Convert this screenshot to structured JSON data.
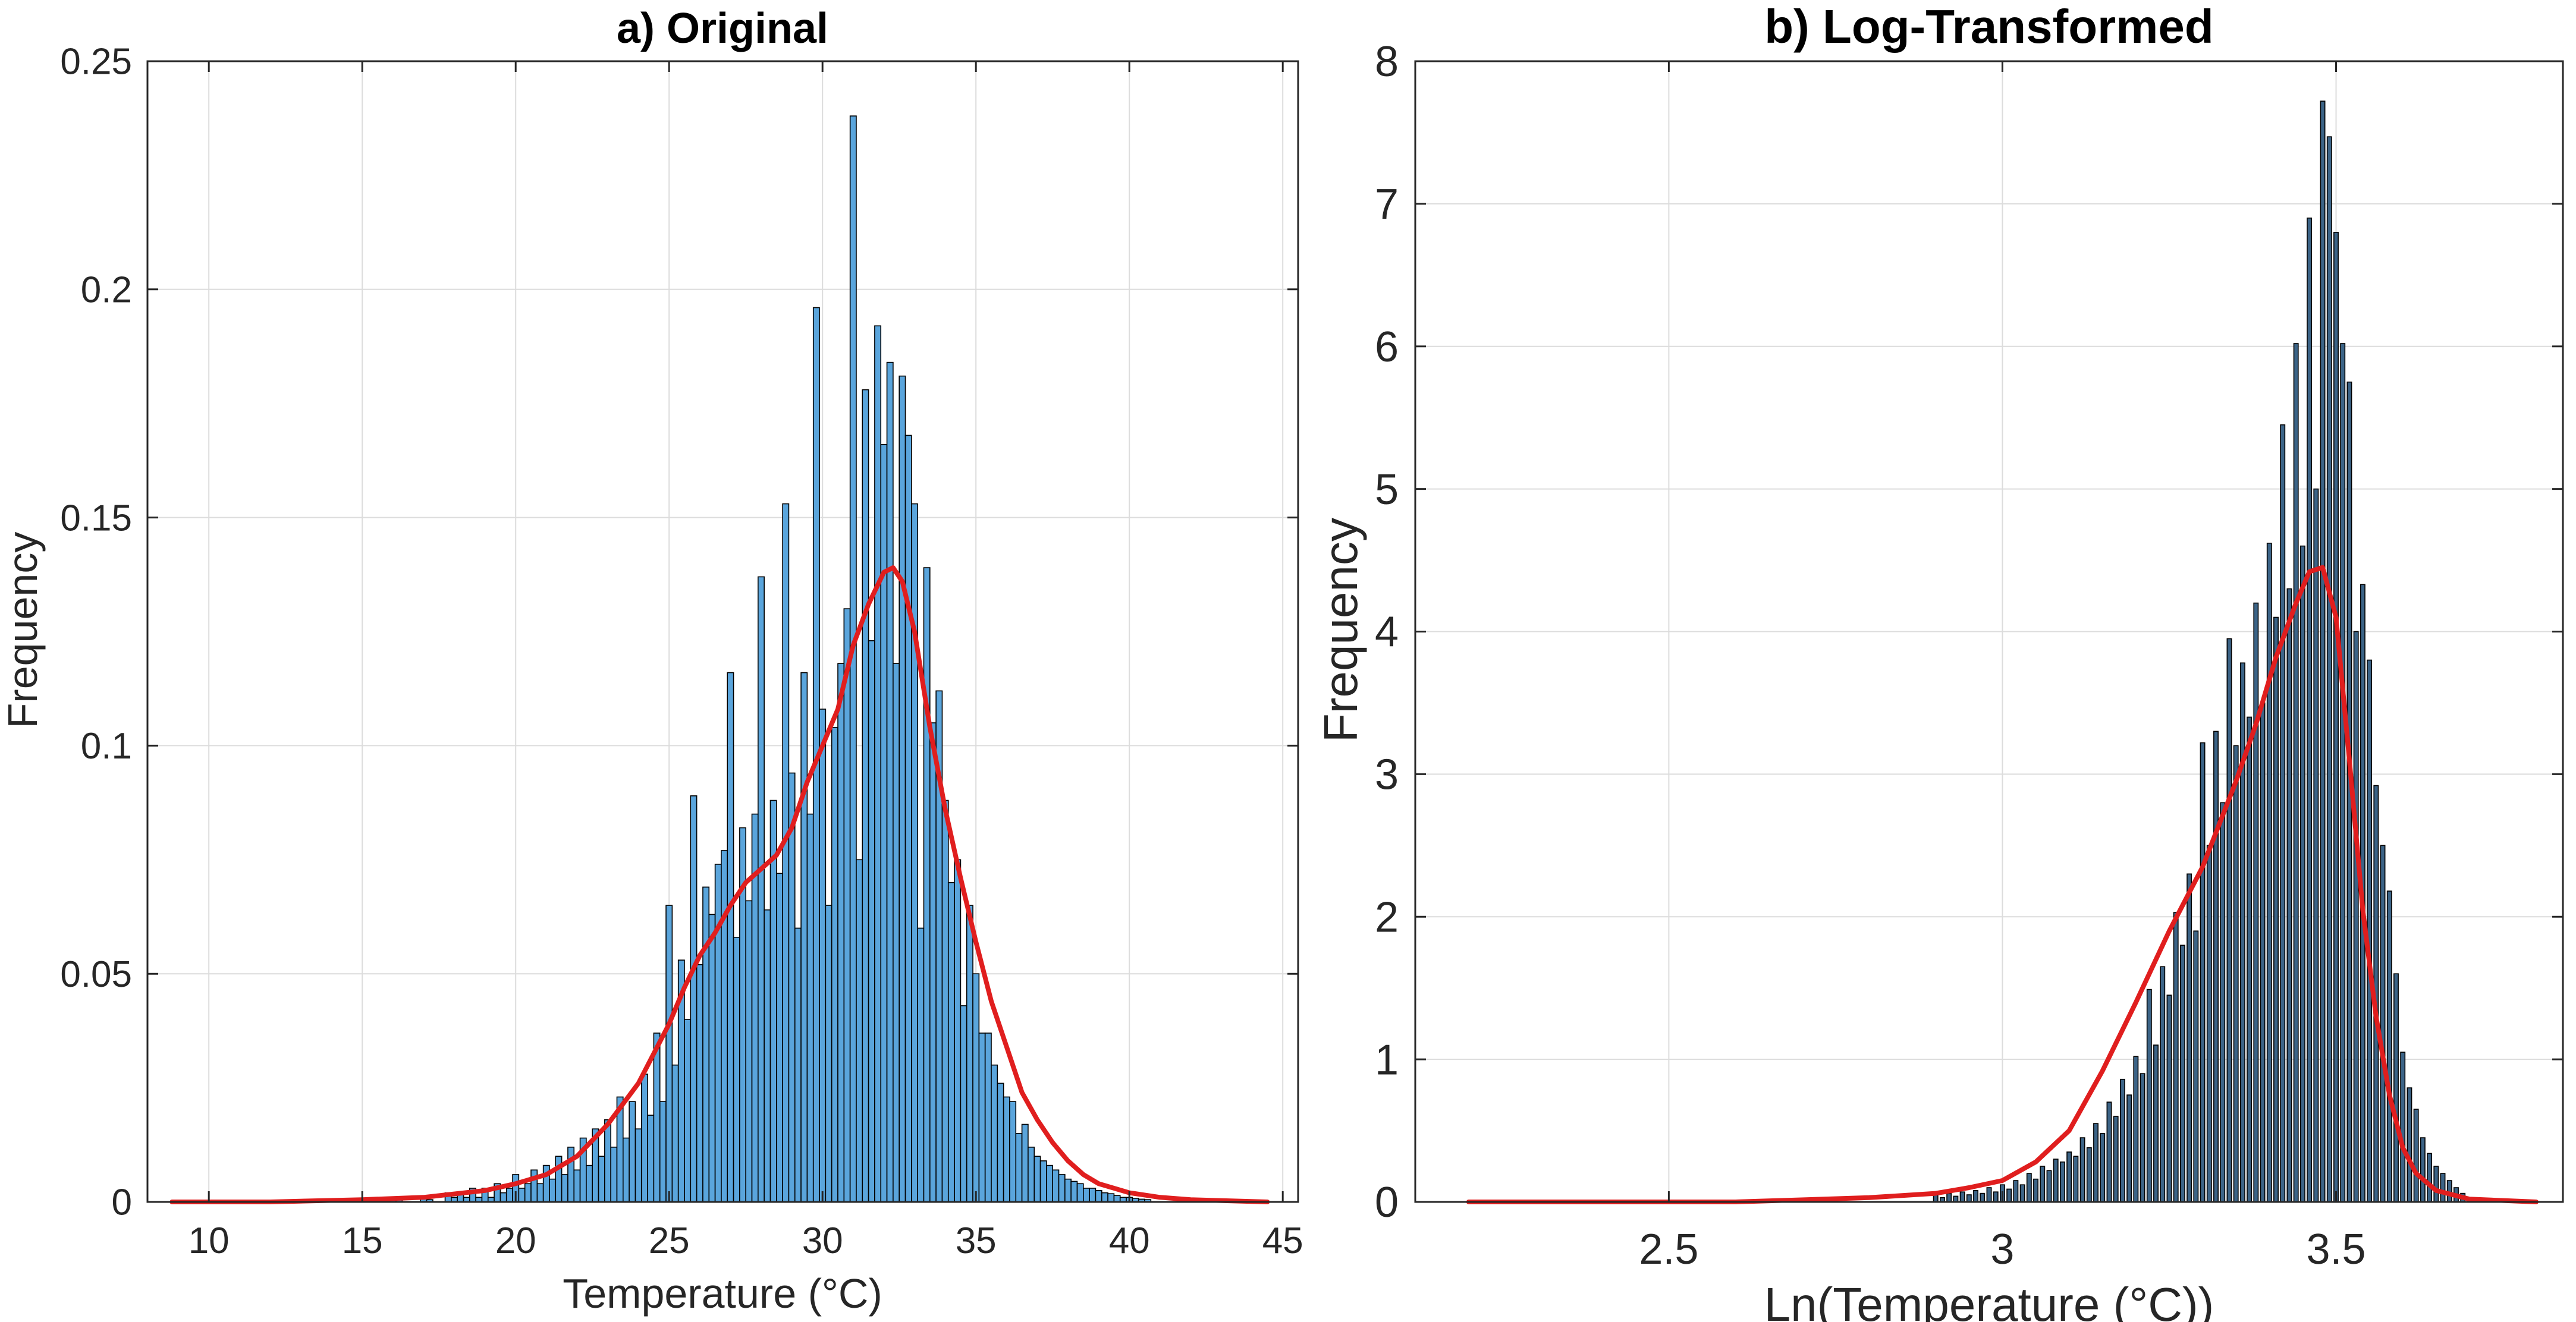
{
  "chart_data": [
    {
      "type": "bar",
      "title": "a) Original",
      "xlabel": "Temperature (°C)",
      "ylabel": "Frequency",
      "xlim": [
        8,
        45.5
      ],
      "ylim": [
        0,
        0.25
      ],
      "xticks": [
        10,
        15,
        20,
        25,
        30,
        35,
        40,
        45
      ],
      "yticks": [
        0,
        0.05,
        0.1,
        0.15,
        0.2,
        0.25
      ],
      "ytick_labels": [
        "0",
        "0.05",
        "0.1",
        "0.15",
        "0.2",
        "0.25"
      ],
      "grid": true,
      "bar_color": "#5aa5dc",
      "bar_edge_color": "#000000",
      "bar_width": 0.2,
      "bars_x": [
        16.0,
        16.2,
        17.0,
        17.2,
        17.8,
        18.0,
        18.2,
        18.4,
        18.6,
        18.8,
        19.0,
        19.2,
        19.4,
        19.6,
        19.8,
        20.0,
        20.2,
        20.4,
        20.6,
        20.8,
        21.0,
        21.2,
        21.4,
        21.6,
        21.8,
        22.0,
        22.2,
        22.4,
        22.6,
        22.8,
        23.0,
        23.2,
        23.4,
        23.6,
        23.8,
        24.0,
        24.2,
        24.4,
        24.6,
        24.8,
        25.0,
        25.2,
        25.4,
        25.6,
        25.8,
        26.0,
        26.2,
        26.4,
        26.6,
        26.8,
        27.0,
        27.2,
        27.4,
        27.6,
        27.8,
        28.0,
        28.2,
        28.4,
        28.6,
        28.8,
        29.0,
        29.2,
        29.4,
        29.6,
        29.8,
        30.0,
        30.2,
        30.4,
        30.6,
        30.8,
        31.0,
        31.2,
        31.4,
        31.6,
        31.8,
        32.0,
        32.2,
        32.4,
        32.6,
        32.8,
        33.0,
        33.2,
        33.4,
        33.6,
        33.8,
        34.0,
        34.2,
        34.4,
        34.6,
        34.8,
        35.0,
        35.2,
        35.4,
        35.6,
        35.8,
        36.0,
        36.2,
        36.4,
        36.6,
        36.8,
        37.0,
        37.2,
        37.4,
        37.6,
        37.8,
        38.0,
        38.2,
        38.4,
        38.6,
        38.8,
        39.0,
        39.2,
        39.4,
        39.6,
        39.8,
        40.0,
        40.2,
        40.4,
        40.6
      ],
      "bars_y": [
        0.001,
        0.0005,
        0.001,
        0.0005,
        0.002,
        0.001,
        0.002,
        0.001,
        0.003,
        0.001,
        0.003,
        0.001,
        0.004,
        0.002,
        0.003,
        0.006,
        0.003,
        0.004,
        0.007,
        0.004,
        0.008,
        0.005,
        0.01,
        0.006,
        0.012,
        0.007,
        0.014,
        0.008,
        0.016,
        0.01,
        0.018,
        0.012,
        0.023,
        0.014,
        0.022,
        0.016,
        0.028,
        0.019,
        0.037,
        0.022,
        0.065,
        0.03,
        0.053,
        0.04,
        0.089,
        0.052,
        0.069,
        0.063,
        0.074,
        0.077,
        0.116,
        0.058,
        0.082,
        0.066,
        0.085,
        0.137,
        0.064,
        0.088,
        0.072,
        0.153,
        0.094,
        0.06,
        0.116,
        0.085,
        0.196,
        0.108,
        0.065,
        0.104,
        0.118,
        0.13,
        0.238,
        0.075,
        0.178,
        0.123,
        0.192,
        0.166,
        0.184,
        0.118,
        0.181,
        0.168,
        0.153,
        0.06,
        0.139,
        0.105,
        0.112,
        0.088,
        0.07,
        0.075,
        0.043,
        0.065,
        0.05,
        0.037,
        0.037,
        0.03,
        0.026,
        0.023,
        0.022,
        0.015,
        0.017,
        0.012,
        0.01,
        0.009,
        0.008,
        0.007,
        0.006,
        0.005,
        0.0045,
        0.004,
        0.003,
        0.003,
        0.0025,
        0.002,
        0.0018,
        0.0014,
        0.001,
        0.001,
        0.0008,
        0.0006,
        0.0005
      ],
      "density_color": "#e01e1e",
      "density_x": [
        8.8,
        12,
        15,
        17,
        19,
        20,
        21,
        22,
        23,
        24,
        25,
        25.5,
        26,
        26.5,
        27,
        27.5,
        28,
        28.5,
        29,
        29.5,
        30,
        30.5,
        31,
        31.5,
        32,
        32.3,
        32.6,
        33,
        33.5,
        34,
        34.5,
        35,
        35.5,
        36,
        36.5,
        37,
        37.5,
        38,
        38.5,
        39,
        40,
        41,
        42,
        44.5
      ],
      "density_y": [
        0.0,
        0.0,
        0.0005,
        0.001,
        0.0025,
        0.004,
        0.006,
        0.01,
        0.017,
        0.026,
        0.039,
        0.047,
        0.054,
        0.059,
        0.065,
        0.07,
        0.073,
        0.076,
        0.082,
        0.092,
        0.1,
        0.108,
        0.122,
        0.131,
        0.138,
        0.139,
        0.136,
        0.125,
        0.104,
        0.086,
        0.071,
        0.057,
        0.044,
        0.034,
        0.024,
        0.018,
        0.013,
        0.009,
        0.006,
        0.004,
        0.002,
        0.001,
        0.0005,
        0.0
      ]
    },
    {
      "type": "bar",
      "title": "b) Log-Transformed",
      "xlabel": "Ln(Temperature (°C))",
      "ylabel": "Frequency",
      "xlim": [
        2.12,
        3.84
      ],
      "ylim": [
        0,
        8
      ],
      "xticks": [
        2.5,
        3,
        3.5
      ],
      "yticks": [
        0,
        1,
        2,
        3,
        4,
        5,
        6,
        7,
        8
      ],
      "ytick_labels": [
        "0",
        "1",
        "2",
        "3",
        "4",
        "5",
        "6",
        "7",
        "8"
      ],
      "grid": true,
      "bar_color": "#3c6487",
      "bar_edge_color": "#000000",
      "bar_width": 0.0065,
      "bars_x": [
        2.9,
        2.91,
        2.92,
        2.93,
        2.94,
        2.95,
        2.96,
        2.97,
        2.98,
        2.99,
        3.0,
        3.01,
        3.02,
        3.03,
        3.04,
        3.05,
        3.06,
        3.07,
        3.08,
        3.09,
        3.1,
        3.11,
        3.12,
        3.13,
        3.14,
        3.15,
        3.16,
        3.17,
        3.18,
        3.19,
        3.2,
        3.21,
        3.22,
        3.23,
        3.24,
        3.25,
        3.26,
        3.27,
        3.28,
        3.29,
        3.3,
        3.31,
        3.32,
        3.33,
        3.34,
        3.35,
        3.36,
        3.37,
        3.38,
        3.39,
        3.4,
        3.41,
        3.42,
        3.43,
        3.44,
        3.45,
        3.46,
        3.47,
        3.48,
        3.49,
        3.5,
        3.51,
        3.52,
        3.53,
        3.54,
        3.55,
        3.56,
        3.57,
        3.58,
        3.59,
        3.6,
        3.61,
        3.62,
        3.63,
        3.64,
        3.65,
        3.66,
        3.67,
        3.68,
        3.69,
        3.7
      ],
      "bars_y": [
        0.05,
        0.03,
        0.06,
        0.04,
        0.07,
        0.05,
        0.08,
        0.06,
        0.1,
        0.07,
        0.12,
        0.09,
        0.15,
        0.12,
        0.2,
        0.16,
        0.25,
        0.22,
        0.3,
        0.28,
        0.35,
        0.32,
        0.45,
        0.38,
        0.55,
        0.48,
        0.7,
        0.6,
        0.86,
        0.75,
        1.02,
        0.9,
        1.49,
        1.1,
        1.65,
        1.45,
        2.03,
        1.8,
        2.3,
        1.9,
        3.22,
        2.5,
        3.3,
        2.8,
        3.95,
        3.2,
        3.78,
        3.4,
        4.2,
        3.5,
        4.62,
        4.1,
        5.45,
        4.3,
        6.02,
        4.6,
        6.9,
        5.0,
        7.72,
        7.47,
        6.8,
        6.02,
        5.75,
        4.0,
        4.33,
        3.8,
        2.92,
        2.5,
        2.18,
        1.6,
        1.05,
        0.8,
        0.65,
        0.45,
        0.34,
        0.25,
        0.2,
        0.15,
        0.1,
        0.06,
        0.03
      ],
      "density_color": "#e01e1e",
      "density_x": [
        2.2,
        2.6,
        2.8,
        2.9,
        2.95,
        3.0,
        3.05,
        3.1,
        3.15,
        3.2,
        3.25,
        3.3,
        3.35,
        3.38,
        3.41,
        3.44,
        3.46,
        3.48,
        3.5,
        3.52,
        3.54,
        3.56,
        3.58,
        3.6,
        3.62,
        3.65,
        3.7,
        3.8
      ],
      "density_y": [
        0.0,
        0.0,
        0.03,
        0.06,
        0.1,
        0.15,
        0.28,
        0.5,
        0.92,
        1.4,
        1.9,
        2.35,
        2.95,
        3.35,
        3.82,
        4.2,
        4.42,
        4.45,
        4.1,
        3.1,
        2.05,
        1.3,
        0.75,
        0.38,
        0.2,
        0.08,
        0.02,
        0.0
      ]
    }
  ]
}
